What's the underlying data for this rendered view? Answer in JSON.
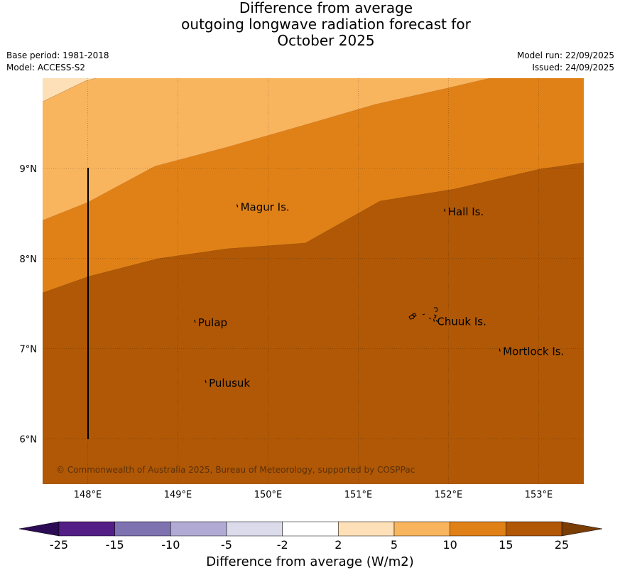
{
  "title": {
    "line1": "Difference from average",
    "line2": "outgoing longwave radiation forecast for",
    "line3": "October 2025"
  },
  "meta_left": {
    "base_period": "Base period: 1981-2018",
    "model": "Model: ACCESS-S2"
  },
  "meta_right": {
    "model_run": "Model run: 22/09/2025",
    "issued": "Issued: 24/09/2025"
  },
  "map": {
    "lon_range": [
      147.5,
      153.5
    ],
    "lat_range": [
      5.5,
      10.0
    ],
    "x_ticks": [
      "148°E",
      "149°E",
      "150°E",
      "151°E",
      "152°E",
      "153°E"
    ],
    "y_ticks": [
      "9°N",
      "8°N",
      "7°N",
      "6°N"
    ],
    "places": [
      {
        "name": "Magur Is.",
        "lon": 149.67,
        "lat": 8.57
      },
      {
        "name": "Hall Is.",
        "lon": 151.97,
        "lat": 8.52
      },
      {
        "name": "Pulap",
        "lon": 149.2,
        "lat": 7.29
      },
      {
        "name": "Chuuk Is.",
        "lon": 151.85,
        "lat": 7.3
      },
      {
        "name": "Mortlock Is.",
        "lon": 152.58,
        "lat": 6.97
      },
      {
        "name": "Pulusuk",
        "lon": 149.32,
        "lat": 6.62
      }
    ],
    "copyright": "© Commonwealth of Australia 2025, Bureau of Meteorology, supported by COSPPac",
    "bands": [
      {
        "range": "2 to 5",
        "color": "#fde0b8"
      },
      {
        "range": "5 to 10",
        "color": "#f9b45e"
      },
      {
        "range": "10 to 15",
        "color": "#e08117"
      },
      {
        "range": "15 to 25",
        "color": "#b05806"
      }
    ],
    "boundary_line": {
      "lon": 148.0,
      "lat_from": 6.0,
      "lat_to": 9.0
    }
  },
  "colorbar": {
    "label": "Difference from average (W/m2)",
    "ticks": [
      "-25",
      "-15",
      "-10",
      "-5",
      "-2",
      "2",
      "5",
      "10",
      "15",
      "25"
    ],
    "colors": [
      "#531f87",
      "#7f72b0",
      "#b1aad4",
      "#dbdbec",
      "#ffffff",
      "#fde0b8",
      "#f9b45e",
      "#e08117",
      "#b05806"
    ],
    "low_extend_color": "#2d0b55",
    "high_extend_color": "#7a3d04"
  }
}
